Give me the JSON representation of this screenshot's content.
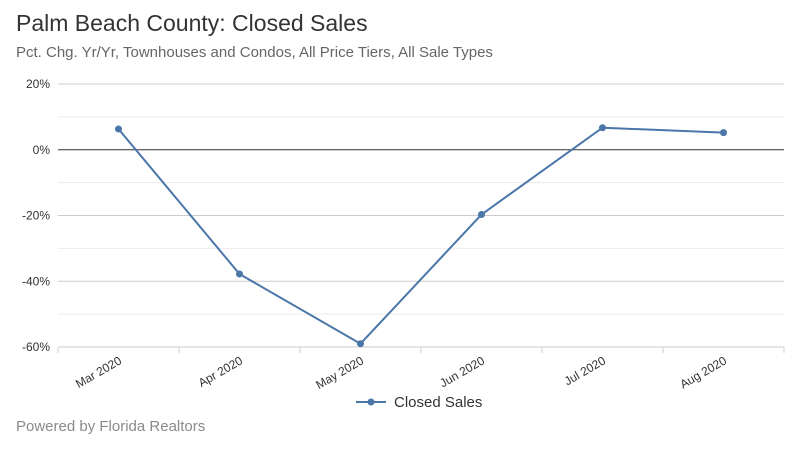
{
  "header": {
    "title": "Palm Beach County: Closed Sales",
    "subtitle": "Pct. Chg. Yr/Yr, Townhouses and Condos, All Price Tiers, All Sale Types"
  },
  "footer": {
    "credit": "Powered by Florida Realtors"
  },
  "chart_data": {
    "type": "line",
    "title": "Palm Beach County: Closed Sales",
    "subtitle": "Pct. Chg. Yr/Yr, Townhouses and Condos, All Price Tiers, All Sale Types",
    "categories": [
      "Mar 2020",
      "Apr 2020",
      "May 2020",
      "Jun 2020",
      "Jul 2020",
      "Aug 2020"
    ],
    "series": [
      {
        "name": "Closed Sales",
        "values": [
          6.3,
          -37.8,
          -59.0,
          -19.7,
          6.7,
          5.2
        ],
        "color": "#4a76a8"
      }
    ],
    "yticks": [
      "20%",
      "0%",
      "-20%",
      "-40%",
      "-60%"
    ],
    "ytick_values": [
      20,
      0,
      -20,
      -40,
      -60
    ],
    "ylim": [
      -60,
      20
    ],
    "y_unit": "%",
    "grid": true,
    "zero_line": true,
    "legend_position": "bottom-center"
  }
}
